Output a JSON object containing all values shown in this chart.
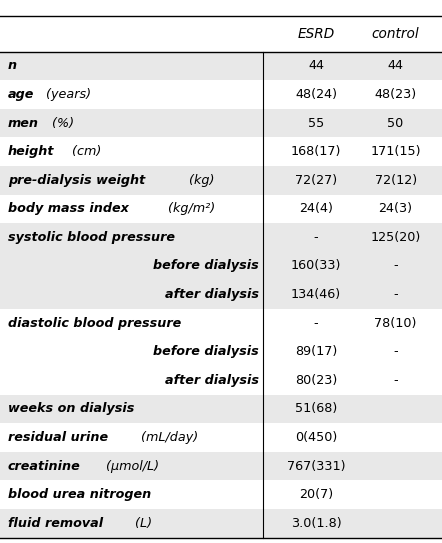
{
  "rows": [
    {
      "label": "n",
      "unit": "",
      "indent": false,
      "esrd": "44",
      "control": "44",
      "shaded": true
    },
    {
      "label": "age",
      "unit": " (years)",
      "indent": false,
      "esrd": "48(24)",
      "control": "48(23)",
      "shaded": false
    },
    {
      "label": "men",
      "unit": " (%)",
      "indent": false,
      "esrd": "55",
      "control": "50",
      "shaded": true
    },
    {
      "label": "height",
      "unit": " (cm)",
      "indent": false,
      "esrd": "168(17)",
      "control": "171(15)",
      "shaded": false
    },
    {
      "label": "pre-dialysis weight",
      "unit": " (kg)",
      "indent": false,
      "esrd": "72(27)",
      "control": "72(12)",
      "shaded": true
    },
    {
      "label": "body mass index",
      "unit": " (kg/m²)",
      "indent": false,
      "esrd": "24(4)",
      "control": "24(3)",
      "shaded": false
    },
    {
      "label": "systolic blood pressure",
      "unit": "",
      "indent": false,
      "esrd": "-",
      "control": "125(20)",
      "shaded": true
    },
    {
      "label": "before dialysis",
      "unit": "",
      "indent": true,
      "esrd": "160(33)",
      "control": "-",
      "shaded": true
    },
    {
      "label": "after dialysis",
      "unit": "",
      "indent": true,
      "esrd": "134(46)",
      "control": "-",
      "shaded": true
    },
    {
      "label": "diastolic blood pressure",
      "unit": "",
      "indent": false,
      "esrd": "-",
      "control": "78(10)",
      "shaded": false
    },
    {
      "label": "before dialysis",
      "unit": "",
      "indent": true,
      "esrd": "89(17)",
      "control": "-",
      "shaded": false
    },
    {
      "label": "after dialysis",
      "unit": "",
      "indent": true,
      "esrd": "80(23)",
      "control": "-",
      "shaded": false
    },
    {
      "label": "weeks on dialysis",
      "unit": "",
      "indent": false,
      "esrd": "51(68)",
      "control": "",
      "shaded": true
    },
    {
      "label": "residual urine",
      "unit": " (mL/day)",
      "indent": false,
      "esrd": "0(450)",
      "control": "",
      "shaded": false
    },
    {
      "label": "creatinine",
      "unit": " (μmol/L)",
      "indent": false,
      "esrd": "767(331)",
      "control": "",
      "shaded": true
    },
    {
      "label": "blood urea nitrogen",
      "unit": "",
      "indent": false,
      "esrd": "20(7)",
      "control": "",
      "shaded": false
    },
    {
      "label": "fluid removal",
      "unit": " (L)",
      "indent": false,
      "esrd": "3.0(1.8)",
      "control": "",
      "shaded": true
    }
  ],
  "shaded_color": "#e8e8e8",
  "white_color": "#ffffff",
  "font_size": 9.2,
  "header_font_size": 9.8
}
